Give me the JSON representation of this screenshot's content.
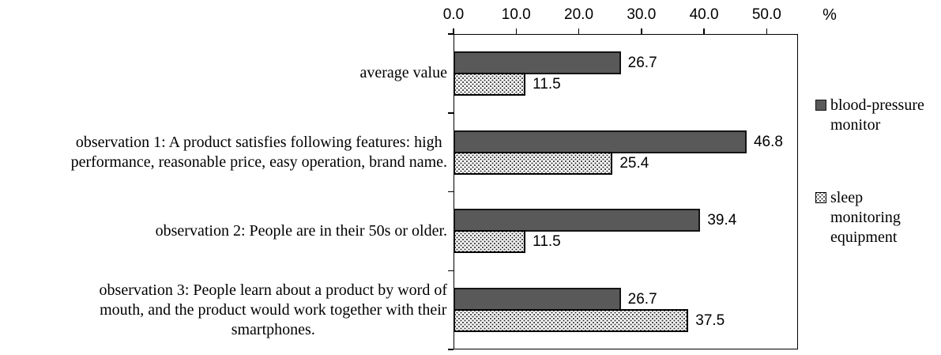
{
  "colors": {
    "background": "#ffffff",
    "text": "#000000",
    "bar_dark": "#595959",
    "bar_border": "#000000",
    "pattern_dot": "#3d3d3d"
  },
  "chart_data": {
    "type": "bar",
    "orientation": "horizontal",
    "title": "",
    "unit_label": "%",
    "grid": false,
    "legend_position": "right",
    "value_labels_shown": true,
    "axis": {
      "min": 0,
      "max": 55,
      "tick_interval": 10,
      "tick_labels": [
        "0.0",
        "10.0",
        "20.0",
        "30.0",
        "40.0",
        "50.0"
      ],
      "position": "top"
    },
    "categories": [
      {
        "key": "average-value",
        "lines": [
          "average value"
        ]
      },
      {
        "key": "observation-1",
        "lines": [
          "observation 1: A product satisfies following features: high",
          "performance, reasonable price, easy operation, brand name."
        ]
      },
      {
        "key": "observation-2",
        "lines": [
          "observation 2: People are in their 50s or older."
        ]
      },
      {
        "key": "observation-3",
        "lines": [
          "observation 3: People learn about a product by word of",
          "mouth, and the product would work together with their",
          "smartphones."
        ]
      }
    ],
    "series": [
      {
        "key": "blood-pressure-monitor",
        "name": "blood-pressure monitor",
        "legend_lines": [
          "blood-pressure",
          "monitor"
        ],
        "fill": "solid",
        "color": "#595959",
        "values": [
          26.7,
          46.8,
          39.4,
          26.7
        ]
      },
      {
        "key": "sleep-monitoring-equipment",
        "name": "sleep monitoring equipment",
        "legend_lines": [
          "sleep",
          "monitoring",
          "equipment"
        ],
        "fill": "dotted-pattern",
        "color": "#ffffff",
        "values": [
          11.5,
          25.4,
          11.5,
          37.5
        ]
      }
    ]
  }
}
